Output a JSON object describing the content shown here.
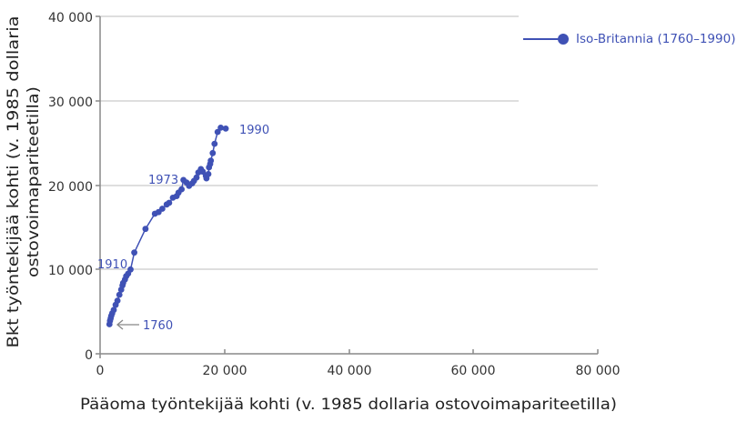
{
  "chart_data": {
    "type": "line",
    "title": "",
    "xlabel": "Pääoma työntekijää kohti (v. 1985 dollaria ostovoimapariteetilla)",
    "ylabel_line1": "Bkt työntekijää kohti (v. 1985 dollaria",
    "ylabel_line2": "ostovoimapariteetilla)",
    "xlim": [
      0,
      80000
    ],
    "ylim": [
      0,
      40000
    ],
    "x_ticks": [
      "0",
      "20 000",
      "40 000",
      "60 000",
      "80 000"
    ],
    "y_ticks": [
      "0",
      "10 000",
      "20 000",
      "30 000",
      "40 000"
    ],
    "grid": "horizontal",
    "legend_position": "top-right",
    "series": [
      {
        "name": "Iso-Britannia (1760–1990)",
        "color": "#3f51b5",
        "points": [
          [
            1500,
            3500
          ],
          [
            1600,
            3900
          ],
          [
            1700,
            4200
          ],
          [
            1800,
            4500
          ],
          [
            1950,
            4800
          ],
          [
            2200,
            5200
          ],
          [
            2500,
            5800
          ],
          [
            2800,
            6300
          ],
          [
            3100,
            7000
          ],
          [
            3400,
            7600
          ],
          [
            3600,
            8100
          ],
          [
            3700,
            8400
          ],
          [
            4000,
            8800
          ],
          [
            4200,
            9200
          ],
          [
            4500,
            9500
          ],
          [
            4900,
            10000
          ],
          [
            5500,
            12000
          ],
          [
            7300,
            14800
          ],
          [
            8800,
            16600
          ],
          [
            9400,
            16800
          ],
          [
            10000,
            17200
          ],
          [
            10700,
            17700
          ],
          [
            11100,
            17900
          ],
          [
            11700,
            18500
          ],
          [
            12300,
            18700
          ],
          [
            12600,
            19100
          ],
          [
            13100,
            19500
          ],
          [
            13400,
            20600
          ],
          [
            13900,
            20300
          ],
          [
            14300,
            19900
          ],
          [
            14800,
            20200
          ],
          [
            15100,
            20500
          ],
          [
            15500,
            20900
          ],
          [
            15800,
            21500
          ],
          [
            16200,
            21900
          ],
          [
            16500,
            21600
          ],
          [
            17000,
            21100
          ],
          [
            17100,
            20800
          ],
          [
            17400,
            21300
          ],
          [
            17500,
            22100
          ],
          [
            17700,
            22500
          ],
          [
            17800,
            22900
          ],
          [
            18100,
            23800
          ],
          [
            18400,
            24900
          ],
          [
            18900,
            26300
          ],
          [
            19400,
            26800
          ],
          [
            20200,
            26700
          ]
        ]
      }
    ],
    "annotations": [
      {
        "text": "1760",
        "x": 1500,
        "y": 3500,
        "arrow": true
      },
      {
        "text": "1910",
        "x": 4900,
        "y": 10000
      },
      {
        "text": "1973",
        "x": 13400,
        "y": 20600
      },
      {
        "text": "1990",
        "x": 20200,
        "y": 26700
      }
    ]
  },
  "legend": {
    "label": "Iso-Britannia (1760–1990)"
  },
  "labels": {
    "x_axis_title": "Pääoma työntekijää kohti (v. 1985 dollaria ostovoimapariteetilla)",
    "y_axis_title_1": "Bkt työntekijää kohti (v. 1985 dollaria",
    "y_axis_title_2": "ostovoimapariteetilla)",
    "x_ticks": [
      "0",
      "20 000",
      "40 000",
      "60 000",
      "80 000"
    ],
    "y_ticks": [
      "0",
      "10 000",
      "20 000",
      "30 000",
      "40 000"
    ],
    "annot_1760": "1760",
    "annot_1910": "1910",
    "annot_1973": "1973",
    "annot_1990": "1990"
  }
}
